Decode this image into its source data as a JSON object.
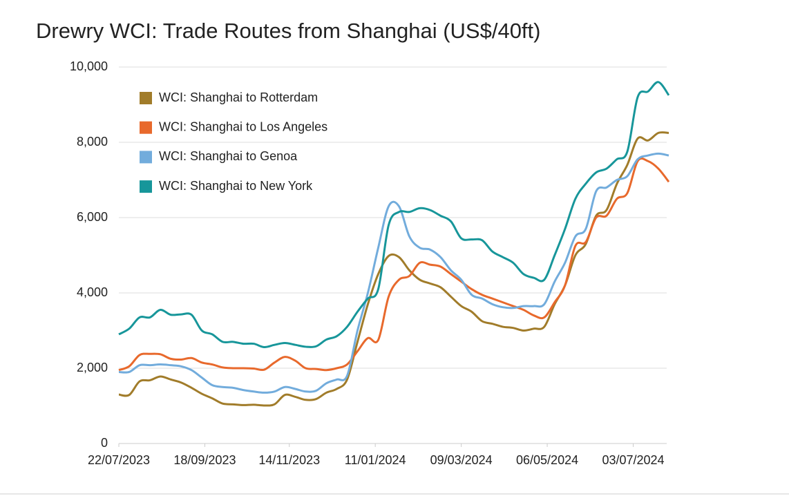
{
  "chart_data": {
    "type": "line",
    "title": "Drewry WCI: Trade Routes from Shanghai (US$/40ft)",
    "x": [
      "22/07/2023",
      "29/07/2023",
      "05/08/2023",
      "12/08/2023",
      "19/08/2023",
      "26/08/2023",
      "02/09/2023",
      "09/09/2023",
      "16/09/2023",
      "23/09/2023",
      "30/09/2023",
      "07/10/2023",
      "14/10/2023",
      "21/10/2023",
      "28/10/2023",
      "04/11/2023",
      "11/11/2023",
      "18/11/2023",
      "25/11/2023",
      "02/12/2023",
      "09/12/2023",
      "16/12/2023",
      "23/12/2023",
      "30/12/2023",
      "06/01/2024",
      "13/01/2024",
      "20/01/2024",
      "27/01/2024",
      "03/02/2024",
      "10/02/2024",
      "17/02/2024",
      "24/02/2024",
      "02/03/2024",
      "09/03/2024",
      "16/03/2024",
      "23/03/2024",
      "30/03/2024",
      "06/04/2024",
      "13/04/2024",
      "20/04/2024",
      "27/04/2024",
      "04/05/2024",
      "11/05/2024",
      "18/05/2024",
      "25/05/2024",
      "01/06/2024",
      "08/06/2024",
      "15/06/2024",
      "22/06/2024",
      "29/06/2024",
      "06/07/2024",
      "13/07/2024",
      "20/07/2024",
      "27/07/2024"
    ],
    "series": [
      {
        "name": "WCI: Shanghai to Rotterdam",
        "color": "#a17c2a",
        "values": [
          1300,
          1290,
          1650,
          1680,
          1780,
          1700,
          1620,
          1480,
          1320,
          1200,
          1060,
          1040,
          1020,
          1030,
          1010,
          1040,
          1290,
          1240,
          1160,
          1180,
          1350,
          1450,
          1700,
          2700,
          3700,
          4500,
          4980,
          4950,
          4600,
          4350,
          4250,
          4150,
          3900,
          3650,
          3500,
          3250,
          3180,
          3100,
          3070,
          3000,
          3050,
          3100,
          3700,
          4200,
          5000,
          5300,
          6050,
          6200,
          6900,
          7400,
          8100,
          8050,
          8250,
          8250
        ]
      },
      {
        "name": "WCI: Shanghai to Los Angeles",
        "color": "#e8692c",
        "values": [
          1950,
          2050,
          2350,
          2380,
          2370,
          2250,
          2230,
          2270,
          2150,
          2100,
          2020,
          2000,
          2000,
          1990,
          1960,
          2150,
          2300,
          2200,
          2000,
          1980,
          1950,
          2000,
          2100,
          2450,
          2800,
          2750,
          3900,
          4350,
          4450,
          4800,
          4750,
          4700,
          4500,
          4300,
          4100,
          3950,
          3850,
          3750,
          3650,
          3550,
          3400,
          3350,
          3750,
          4200,
          5250,
          5350,
          6000,
          6050,
          6500,
          6650,
          7500,
          7500,
          7300,
          6950
        ]
      },
      {
        "name": "WCI: Shanghai to Genoa",
        "color": "#72acdc",
        "values": [
          1900,
          1900,
          2080,
          2080,
          2100,
          2080,
          2050,
          1950,
          1750,
          1550,
          1500,
          1480,
          1420,
          1380,
          1350,
          1380,
          1500,
          1450,
          1380,
          1400,
          1600,
          1700,
          1800,
          3000,
          4000,
          5200,
          6300,
          6300,
          5500,
          5200,
          5150,
          4950,
          4600,
          4350,
          3950,
          3850,
          3700,
          3620,
          3600,
          3650,
          3650,
          3700,
          4300,
          4800,
          5500,
          5700,
          6700,
          6800,
          7000,
          7100,
          7550,
          7650,
          7700,
          7650
        ]
      },
      {
        "name": "WCI: Shanghai to New York",
        "color": "#17969a",
        "values": [
          2900,
          3050,
          3350,
          3350,
          3550,
          3420,
          3430,
          3420,
          3000,
          2900,
          2700,
          2700,
          2650,
          2650,
          2560,
          2620,
          2670,
          2620,
          2570,
          2580,
          2760,
          2850,
          3100,
          3500,
          3850,
          4100,
          5800,
          6150,
          6150,
          6250,
          6200,
          6050,
          5900,
          5450,
          5420,
          5400,
          5100,
          4950,
          4800,
          4500,
          4400,
          4350,
          5000,
          5700,
          6500,
          6900,
          7200,
          7300,
          7550,
          7750,
          9200,
          9350,
          9600,
          9250
        ]
      }
    ],
    "xlim": [
      "22/07/2023",
      "27/07/2024"
    ],
    "xticks": [
      "22/07/2023",
      "18/09/2023",
      "14/11/2023",
      "11/01/2024",
      "09/03/2024",
      "06/05/2024",
      "03/07/2024"
    ],
    "ylim": [
      0,
      10000
    ],
    "yticks": [
      0,
      {
        "value": 2000,
        "label": "2,000"
      },
      {
        "value": 4000,
        "label": "4,000"
      },
      {
        "value": 6000,
        "label": "6,000"
      },
      {
        "value": 8000,
        "label": "8,000"
      },
      {
        "value": 10000,
        "label": "10,000"
      }
    ],
    "grid": true,
    "legend": "top-left"
  }
}
